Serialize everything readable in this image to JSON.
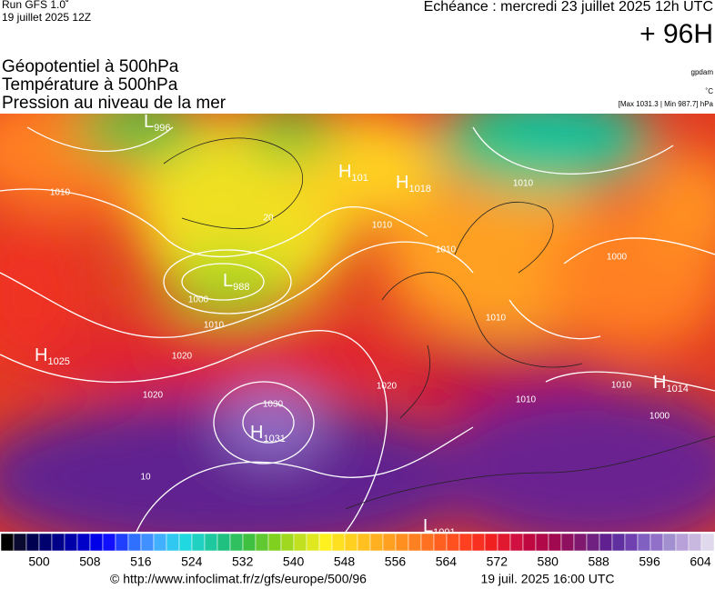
{
  "header": {
    "run": "Run GFS 1.0˚",
    "run_date": "19 juillet 2025 12Z",
    "valid": "Echéance : mercredi 23 juillet 2025 12h UTC",
    "lead": "+ 96H"
  },
  "legend": {
    "lines": [
      "Géopotentiel à 500hPa",
      "Température à 500hPa",
      "Pression au niveau de la mer"
    ],
    "units": [
      "gpdam",
      "˚C"
    ],
    "extremes": "[Max 1031.3 | Min 987.7] hPa"
  },
  "map": {
    "centers": [
      {
        "letter": "L",
        "value": 996
      },
      {
        "letter": "H",
        "value": 101
      },
      {
        "letter": "H",
        "value": 1018
      },
      {
        "letter": "L",
        "value": 988
      },
      {
        "letter": "H",
        "value": 1025
      },
      {
        "letter": "H",
        "value": 1031
      },
      {
        "letter": "H",
        "value": 1014
      },
      {
        "letter": "L",
        "value": 1001
      }
    ],
    "isobar_labels": [
      1010,
      1010,
      1010,
      1000,
      1010,
      1020,
      1020,
      1030,
      1020,
      1000,
      1010,
      1010,
      1000,
      1010,
      1010,
      20,
      10
    ]
  },
  "colorbar": {
    "ticks": [
      500,
      508,
      516,
      524,
      532,
      540,
      548,
      556,
      564,
      572,
      580,
      588,
      596,
      604
    ],
    "colors": [
      "#000000",
      "#0a0a30",
      "#000050",
      "#00006e",
      "#000088",
      "#0000a8",
      "#0000c8",
      "#0000e8",
      "#1010ff",
      "#2040ff",
      "#3070ff",
      "#4090ff",
      "#40b0ff",
      "#30c8f0",
      "#20d8e0",
      "#20d0c0",
      "#20c8a0",
      "#20c080",
      "#30c060",
      "#40c040",
      "#60c830",
      "#80d020",
      "#a0d820",
      "#c0e020",
      "#e0e820",
      "#fff020",
      "#ffe020",
      "#ffd020",
      "#ffc020",
      "#ffb020",
      "#ffa020",
      "#ff9020",
      "#ff8020",
      "#ff7020",
      "#ff6020",
      "#ff5020",
      "#ff4020",
      "#f83020",
      "#f02020",
      "#e01830",
      "#d01040",
      "#c00840",
      "#b00848",
      "#a00850",
      "#901060",
      "#801870",
      "#702080",
      "#602090",
      "#6030a0",
      "#7040b0",
      "#8060c0",
      "#9070c8",
      "#a090d0",
      "#b8a0d8",
      "#c8b8e0",
      "#e0d8ec"
    ]
  },
  "footer": {
    "url": "© http://www.infoclimat.fr/z/gfs/europe/500/96",
    "generated": "19 juil. 2025 16:00 UTC"
  }
}
